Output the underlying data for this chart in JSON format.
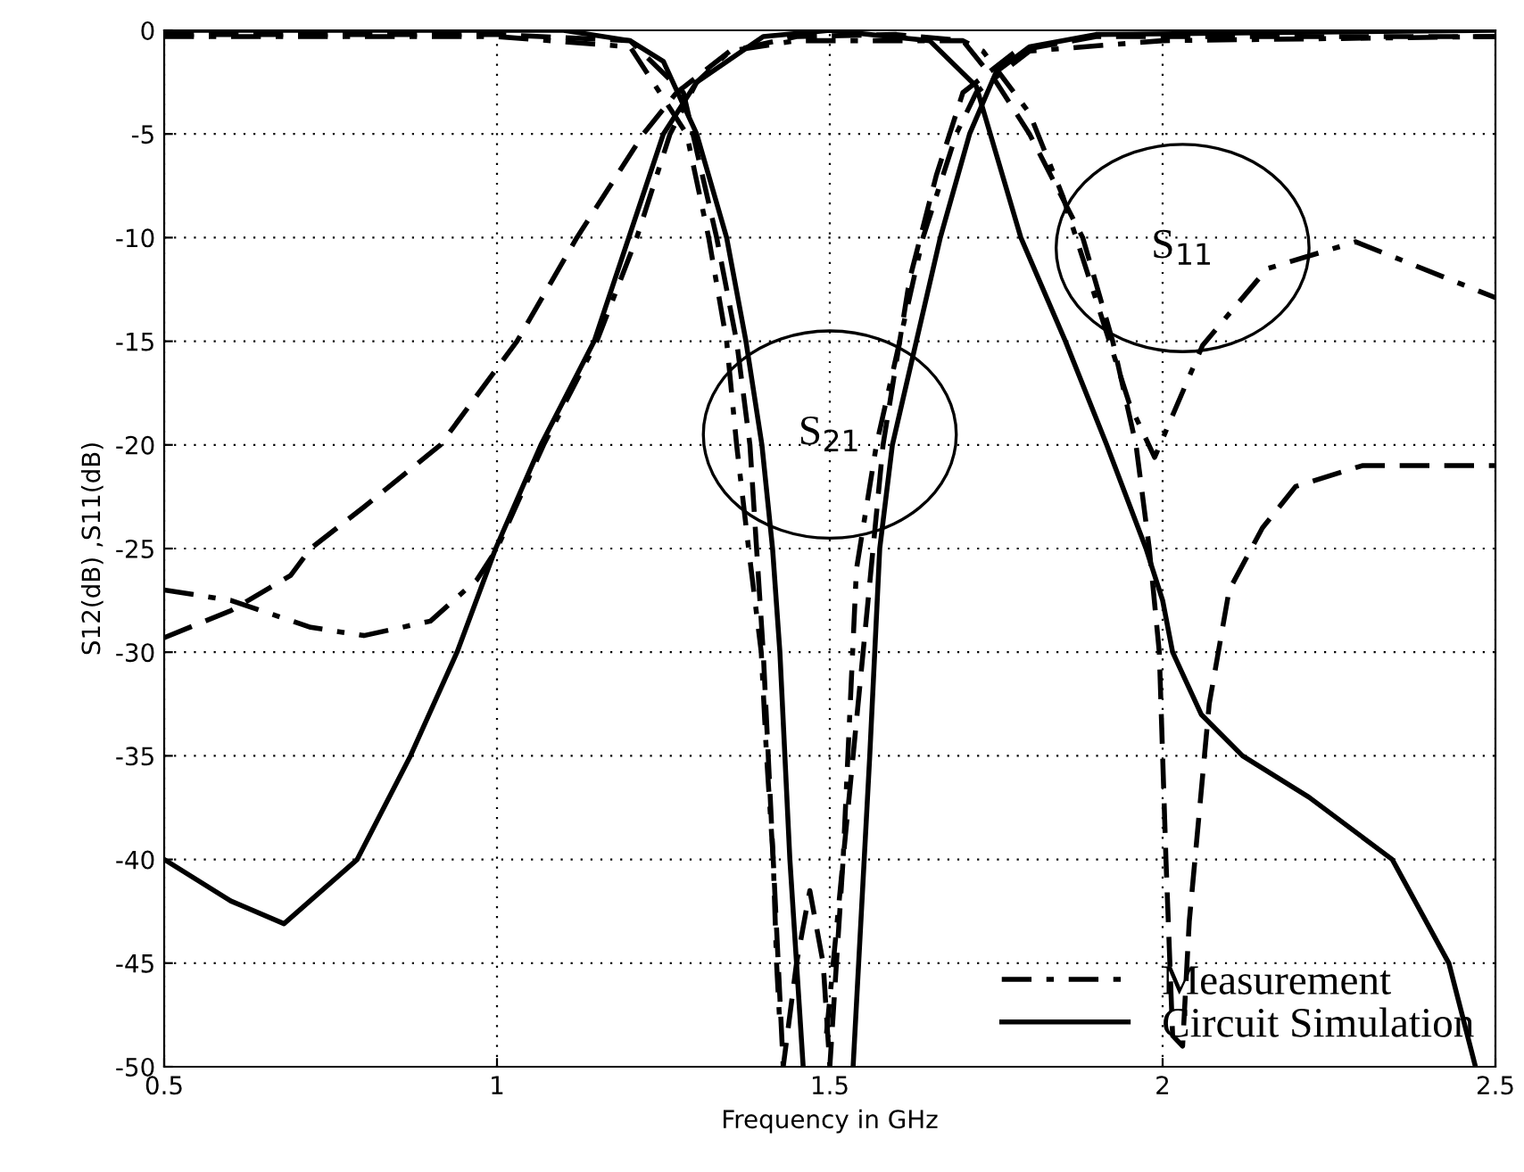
{
  "chart_data": {
    "type": "line",
    "xlabel": "Frequency in GHz",
    "ylabel": "S12(dB) ,S11(dB)",
    "xlim": [
      0.5,
      2.5
    ],
    "ylim": [
      -50,
      0
    ],
    "xticks": [
      0.5,
      1,
      1.5,
      2,
      2.5
    ],
    "yticks": [
      -50,
      -45,
      -40,
      -35,
      -30,
      -25,
      -20,
      -15,
      -10,
      -5,
      0
    ],
    "grid": true,
    "legend": "bottom right",
    "marker": "none",
    "annotations": [
      "S$_{21}$",
      "S$_{11}$"
    ],
    "series": [
      {
        "color": "#000000",
        "line_style": "dashed",
        "x": [
          0.5,
          0.6,
          0.69,
          0.72,
          0.8,
          0.915,
          1.03,
          1.12,
          1.22,
          1.27,
          1.35,
          1.45,
          1.6,
          1.7,
          1.75,
          1.8,
          1.88,
          1.925,
          1.96,
          1.98,
          1.995,
          2.005,
          2.015,
          2.03,
          2.04,
          2.07,
          2.1,
          2.15,
          2.2,
          2.3,
          2.5
        ],
        "values": [
          -29.3,
          -28,
          -26.3,
          -25,
          -23,
          -20,
          -15,
          -10,
          -5,
          -3,
          -1,
          -0.3,
          -0.2,
          -0.5,
          -2.5,
          -5,
          -10,
          -15,
          -20,
          -25,
          -30,
          -40,
          -48.5,
          -49,
          -43,
          -32.5,
          -27,
          -24,
          -22,
          -21,
          -21
        ]
      },
      {
        "color": "#000000",
        "line_style": "dashed",
        "x": [
          0.5,
          1.0,
          1.2,
          1.28,
          1.33,
          1.36,
          1.38,
          1.4,
          1.415,
          1.43,
          1.45,
          1.47,
          1.49,
          1.5,
          1.52,
          1.55,
          1.58,
          1.62,
          1.66,
          1.7,
          1.78,
          1.9,
          2.5
        ],
        "values": [
          -0.2,
          -0.2,
          -0.5,
          -3,
          -10,
          -15,
          -20,
          -30,
          -40,
          -50,
          -45,
          -41.5,
          -45,
          -50,
          -40,
          -30,
          -20,
          -12,
          -7,
          -3,
          -1,
          -0.3,
          -0.3
        ]
      },
      {
        "name": "Measurement",
        "color": "#000000",
        "line_style": "dashdot",
        "x": [
          0.5,
          0.6,
          0.72,
          0.8,
          0.9,
          0.97,
          1.0,
          1.07,
          1.15,
          1.21,
          1.26,
          1.3,
          1.35,
          1.45,
          1.7,
          1.73,
          1.8,
          1.85,
          1.9,
          1.95,
          1.988,
          2.06,
          2.157,
          2.29,
          2.5
        ],
        "values": [
          -27,
          -27.5,
          -28.8,
          -29.2,
          -28.5,
          -26.5,
          -25,
          -20,
          -15,
          -10,
          -5,
          -2.5,
          -1,
          -0.5,
          -0.5,
          -1,
          -4,
          -8,
          -13,
          -18,
          -20.6,
          -15.2,
          -11.5,
          -10.2,
          -12.9
        ]
      },
      {
        "color": "#000000",
        "line_style": "dashdot",
        "x": [
          0.5,
          1.0,
          1.2,
          1.285,
          1.318,
          1.345,
          1.36,
          1.378,
          1.397,
          1.405,
          1.415,
          1.42,
          1.425,
          null,
          1.495,
          1.52,
          1.54,
          1.57,
          1.605,
          1.64,
          1.69,
          1.72,
          1.8,
          2.0,
          2.5
        ],
        "values": [
          -0.3,
          -0.3,
          -0.8,
          -5,
          -10,
          -15,
          -20,
          -25,
          -30,
          -35,
          -40,
          -45,
          -48,
          null,
          -48.4,
          -40,
          -26,
          -20,
          -15,
          -10,
          -5,
          -3,
          -1,
          -0.5,
          -0.3
        ]
      },
      {
        "name": "Circuit Simulation",
        "color": "#000000",
        "line_style": "solid",
        "x": [
          0.5,
          0.6,
          0.68,
          0.79,
          0.87,
          0.94,
          0.998,
          1.066,
          1.146,
          1.25,
          1.3,
          1.4,
          1.5,
          1.65,
          1.72,
          1.787,
          1.854,
          1.916,
          1.975,
          2.0,
          2.015,
          2.058,
          2.12,
          2.22,
          2.345,
          2.43,
          2.47
        ],
        "values": [
          -40,
          -42,
          -43.1,
          -40,
          -35,
          -30,
          -25,
          -20,
          -15,
          -5,
          -2.5,
          -0.3,
          0,
          -0.5,
          -2.7,
          -10,
          -15,
          -20,
          -25,
          -27.5,
          -30,
          -33,
          -35,
          -37,
          -40,
          -45,
          -50
        ]
      },
      {
        "color": "#000000",
        "line_style": "solid",
        "x": [
          0.5,
          1.1,
          1.2,
          1.25,
          1.3,
          1.345,
          1.374,
          1.398,
          1.414,
          1.425,
          1.44,
          1.46,
          null,
          1.535,
          1.56,
          1.575,
          1.594,
          1.63,
          1.666,
          1.71,
          1.75,
          1.8,
          1.9,
          2.5
        ],
        "values": [
          0,
          0,
          -0.5,
          -1.5,
          -5,
          -10,
          -15,
          -20,
          -25,
          -30,
          -40,
          -50,
          null,
          -50,
          -35,
          -25,
          -20,
          -15,
          -10,
          -5,
          -2,
          -0.8,
          -0.2,
          0
        ]
      }
    ]
  }
}
